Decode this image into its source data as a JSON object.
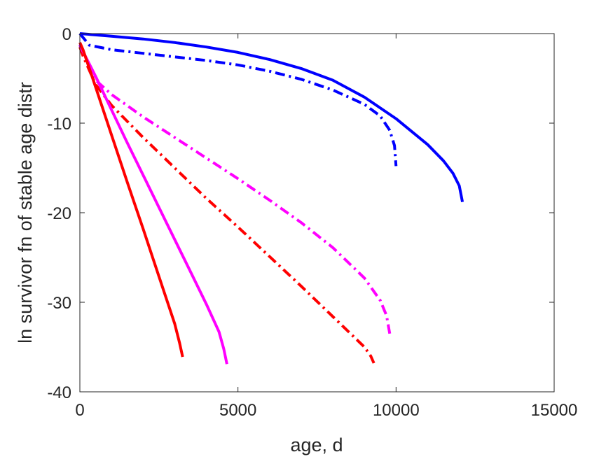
{
  "chart_data": {
    "type": "line",
    "title": "",
    "xlabel": "age, d",
    "ylabel": "ln survivor fn of stable age distr",
    "xlim": [
      0,
      15000
    ],
    "ylim": [
      -40,
      0
    ],
    "xticks": [
      0,
      5000,
      10000,
      15000
    ],
    "xtick_labels": [
      "0",
      "5000",
      "10000",
      "15000"
    ],
    "yticks": [
      0,
      -10,
      -20,
      -30,
      -40
    ],
    "ytick_labels": [
      "0",
      "-10",
      "-20",
      "-30",
      "-40"
    ],
    "grid": false,
    "legend": "none",
    "series": [
      {
        "color": "#0000ff",
        "style": "solid",
        "x": [
          0,
          1000,
          2000,
          3000,
          4000,
          5000,
          6000,
          7000,
          8000,
          9000,
          10000,
          11000,
          11500,
          11800,
          12000,
          12100
        ],
        "y": [
          0,
          -0.3,
          -0.6,
          -1.0,
          -1.5,
          -2.1,
          -2.9,
          -3.9,
          -5.2,
          -7.1,
          -9.5,
          -12.4,
          -14.2,
          -15.6,
          -17.0,
          -18.8
        ]
      },
      {
        "color": "#0000ff",
        "style": "dashdot",
        "x": [
          0,
          300,
          1000,
          2000,
          3000,
          4000,
          5000,
          6000,
          7000,
          8000,
          9000,
          9500,
          9800,
          9950,
          10000
        ],
        "y": [
          0,
          -1.3,
          -1.8,
          -2.2,
          -2.6,
          -3.0,
          -3.5,
          -4.2,
          -5.1,
          -6.3,
          -7.9,
          -9.2,
          -10.8,
          -12.5,
          -14.8
        ]
      },
      {
        "color": "#ff00ff",
        "style": "dashdot",
        "x": [
          0,
          100,
          500,
          1000,
          2000,
          3000,
          4000,
          5000,
          6000,
          7000,
          8000,
          9000,
          9500,
          9700,
          9800
        ],
        "y": [
          -1.2,
          -2.0,
          -5.2,
          -6.8,
          -9.3,
          -11.6,
          -13.9,
          -16.2,
          -18.6,
          -21.1,
          -23.9,
          -27.3,
          -29.8,
          -31.5,
          -33.5
        ]
      },
      {
        "color": "#ff0000",
        "style": "dashdot",
        "x": [
          0,
          100,
          500,
          1000,
          2000,
          3000,
          4000,
          5000,
          6000,
          7000,
          8000,
          9000,
          9200,
          9300
        ],
        "y": [
          -1.5,
          -2.5,
          -5.7,
          -8.0,
          -11.6,
          -15.0,
          -18.4,
          -21.6,
          -24.9,
          -28.2,
          -31.6,
          -35.0,
          -36.0,
          -36.8
        ]
      },
      {
        "color": "#ff00ff",
        "style": "solid",
        "x": [
          0,
          100,
          500,
          1000,
          1500,
          2000,
          2500,
          3000,
          3500,
          4000,
          4400,
          4550,
          4650
        ],
        "y": [
          -1.3,
          -2.0,
          -4.8,
          -8.5,
          -12.2,
          -15.8,
          -19.4,
          -23.0,
          -26.6,
          -30.2,
          -33.3,
          -35.2,
          -36.9
        ]
      },
      {
        "color": "#ff0000",
        "style": "solid",
        "x": [
          0,
          100,
          500,
          1000,
          1500,
          2000,
          2500,
          3000,
          3150,
          3250
        ],
        "y": [
          -1.0,
          -1.8,
          -6.0,
          -11.3,
          -16.6,
          -21.8,
          -27.1,
          -32.4,
          -34.5,
          -36.1
        ]
      }
    ]
  }
}
